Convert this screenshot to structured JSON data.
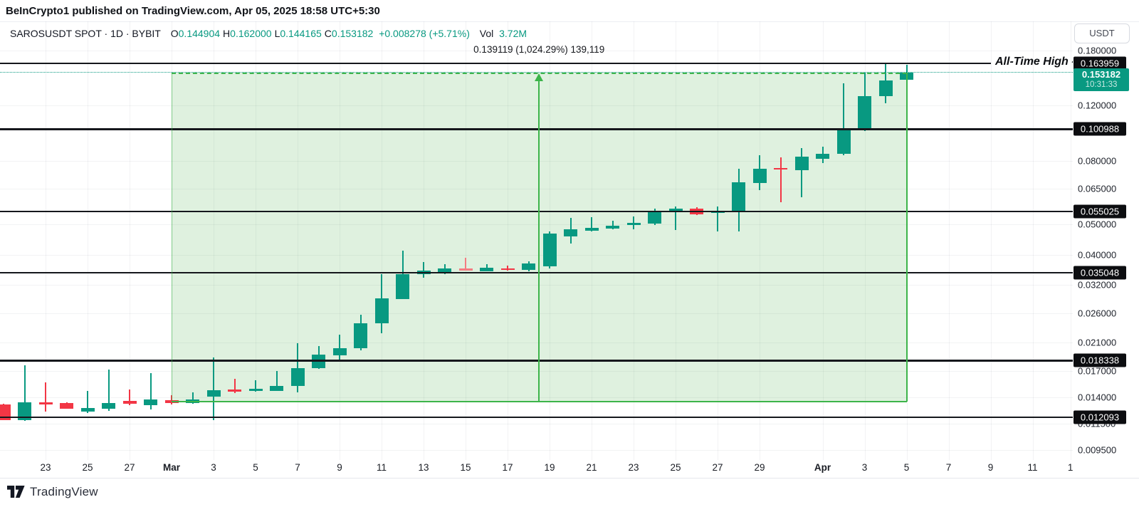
{
  "header": {
    "publish_info": "BeInCrypto1 published on TradingView.com, Apr 05, 2025 18:58 UTC+5:30"
  },
  "legend": {
    "title": "SAROSUSDT SPOT · 1D · BYBIT",
    "ohlc": [
      {
        "k": "O",
        "v": "0.144904"
      },
      {
        "k": "H",
        "v": "0.162000"
      },
      {
        "k": "L",
        "v": "0.144165"
      },
      {
        "k": "C",
        "v": "0.153182"
      }
    ],
    "change": "+0.008278 (+5.71%)",
    "volume_label": "Vol",
    "volume_value": "3.72M"
  },
  "toolbar": {
    "currency_button": "USDT"
  },
  "branding": {
    "logo_text": "TradingView"
  },
  "colors": {
    "up": "#089981",
    "down": "#F23645",
    "down_muted": "#F47C82",
    "measure_green": "#3cb44a",
    "ray_black": "#15171c",
    "badge_black": "#0c0d10"
  },
  "chart_data": {
    "type": "candlestick",
    "symbol": "SAROSUSDT",
    "market": "SPOT",
    "interval": "1D",
    "exchange": "BYBIT",
    "scale": "logarithmic",
    "title": "SAROSUSDT SPOT · 1D · BYBIT",
    "ylim": [
      0.0095,
      0.18
    ],
    "candles": [
      {
        "d": "Feb 21",
        "o": 0.0133,
        "h": 0.01332,
        "l": 0.01183,
        "c": 0.01185,
        "k": "r"
      },
      {
        "d": "Feb 22",
        "o": 0.01183,
        "h": 0.01772,
        "l": 0.0118,
        "c": 0.01348,
        "k": "g"
      },
      {
        "d": "Feb 23",
        "o": 0.01352,
        "h": 0.0156,
        "l": 0.01262,
        "c": 0.0133,
        "k": "r"
      },
      {
        "d": "Feb 24",
        "o": 0.0134,
        "h": 0.01348,
        "l": 0.01285,
        "c": 0.0129,
        "k": "r"
      },
      {
        "d": "Feb 25",
        "o": 0.01261,
        "h": 0.01467,
        "l": 0.01244,
        "c": 0.01296,
        "k": "g"
      },
      {
        "d": "Feb 26",
        "o": 0.01284,
        "h": 0.01716,
        "l": 0.01268,
        "c": 0.01341,
        "k": "g"
      },
      {
        "d": "Feb 27",
        "o": 0.01364,
        "h": 0.01482,
        "l": 0.01318,
        "c": 0.01333,
        "k": "r"
      },
      {
        "d": "Feb 28",
        "o": 0.01318,
        "h": 0.01672,
        "l": 0.0128,
        "c": 0.0138,
        "k": "g"
      },
      {
        "d": "Mar 1",
        "o": 0.01372,
        "h": 0.0142,
        "l": 0.01326,
        "c": 0.01341,
        "k": "r"
      },
      {
        "d": "Mar 2",
        "o": 0.01341,
        "h": 0.01453,
        "l": 0.01333,
        "c": 0.0138,
        "k": "g"
      },
      {
        "d": "Mar 3",
        "o": 0.01406,
        "h": 0.01873,
        "l": 0.01183,
        "c": 0.01475,
        "k": "g"
      },
      {
        "d": "Mar 4",
        "o": 0.01482,
        "h": 0.01601,
        "l": 0.01445,
        "c": 0.01467,
        "k": "r"
      },
      {
        "d": "Mar 5",
        "o": 0.01467,
        "h": 0.01584,
        "l": 0.0146,
        "c": 0.0149,
        "k": "g"
      },
      {
        "d": "Mar 6",
        "o": 0.01467,
        "h": 0.01698,
        "l": 0.01465,
        "c": 0.01521,
        "k": "g"
      },
      {
        "d": "Mar 7",
        "o": 0.01521,
        "h": 0.02089,
        "l": 0.01453,
        "c": 0.01734,
        "k": "g"
      },
      {
        "d": "Mar 8",
        "o": 0.01734,
        "h": 0.02038,
        "l": 0.0173,
        "c": 0.01916,
        "k": "g"
      },
      {
        "d": "Mar 9",
        "o": 0.01906,
        "h": 0.02222,
        "l": 0.01842,
        "c": 0.02007,
        "k": "g"
      },
      {
        "d": "Mar 10",
        "o": 0.02007,
        "h": 0.02573,
        "l": 0.01975,
        "c": 0.0241,
        "k": "g"
      },
      {
        "d": "Mar 11",
        "o": 0.0241,
        "h": 0.0347,
        "l": 0.02245,
        "c": 0.02903,
        "k": "g"
      },
      {
        "d": "Mar 12",
        "o": 0.02888,
        "h": 0.0413,
        "l": 0.0288,
        "c": 0.0347,
        "k": "g"
      },
      {
        "d": "Mar 13",
        "o": 0.0347,
        "h": 0.0379,
        "l": 0.03385,
        "c": 0.03562,
        "k": "g"
      },
      {
        "d": "Mar 14",
        "o": 0.03525,
        "h": 0.03733,
        "l": 0.0347,
        "c": 0.03618,
        "k": "g"
      },
      {
        "d": "Mar 15",
        "o": 0.0361,
        "h": 0.03906,
        "l": 0.03562,
        "c": 0.0359,
        "k": "s"
      },
      {
        "d": "Mar 16",
        "o": 0.03543,
        "h": 0.03733,
        "l": 0.0354,
        "c": 0.03637,
        "k": "g"
      },
      {
        "d": "Mar 17",
        "o": 0.03618,
        "h": 0.03695,
        "l": 0.03562,
        "c": 0.0358,
        "k": "r"
      },
      {
        "d": "Mar 18",
        "o": 0.0358,
        "h": 0.0381,
        "l": 0.03543,
        "c": 0.03752,
        "k": "g"
      },
      {
        "d": "Mar 19",
        "o": 0.03675,
        "h": 0.04745,
        "l": 0.03618,
        "c": 0.0467,
        "k": "g"
      },
      {
        "d": "Mar 20",
        "o": 0.04573,
        "h": 0.05238,
        "l": 0.04352,
        "c": 0.04817,
        "k": "g"
      },
      {
        "d": "Mar 21",
        "o": 0.04767,
        "h": 0.05265,
        "l": 0.04742,
        "c": 0.04868,
        "k": "g"
      },
      {
        "d": "Mar 22",
        "o": 0.04842,
        "h": 0.05128,
        "l": 0.04817,
        "c": 0.04944,
        "k": "g"
      },
      {
        "d": "Mar 23",
        "o": 0.0497,
        "h": 0.05293,
        "l": 0.04817,
        "c": 0.05048,
        "k": "g"
      },
      {
        "d": "Mar 24",
        "o": 0.05022,
        "h": 0.05628,
        "l": 0.0497,
        "c": 0.05512,
        "k": "g"
      },
      {
        "d": "Mar 25",
        "o": 0.05483,
        "h": 0.05717,
        "l": 0.04791,
        "c": 0.05628,
        "k": "g"
      },
      {
        "d": "Mar 26",
        "o": 0.05628,
        "h": 0.05687,
        "l": 0.05368,
        "c": 0.05396,
        "k": "r"
      },
      {
        "d": "Mar 27",
        "o": 0.05455,
        "h": 0.05717,
        "l": 0.04742,
        "c": 0.05541,
        "k": "g"
      },
      {
        "d": "Mar 28",
        "o": 0.05512,
        "h": 0.07545,
        "l": 0.04742,
        "c": 0.06834,
        "k": "g"
      },
      {
        "d": "Mar 29",
        "o": 0.06798,
        "h": 0.08344,
        "l": 0.06451,
        "c": 0.07545,
        "k": "g"
      },
      {
        "d": "Mar 30",
        "o": 0.07585,
        "h": 0.08214,
        "l": 0.05899,
        "c": 0.07506,
        "k": "r"
      },
      {
        "d": "Mar 31",
        "o": 0.07467,
        "h": 0.08796,
        "l": 0.06119,
        "c": 0.08258,
        "k": "g"
      },
      {
        "d": "Apr 1",
        "o": 0.08129,
        "h": 0.08889,
        "l": 0.07872,
        "c": 0.08434,
        "k": "g"
      },
      {
        "d": "Apr 2",
        "o": 0.08434,
        "h": 0.14164,
        "l": 0.08344,
        "c": 0.09994,
        "k": "g"
      },
      {
        "d": "Apr 3",
        "o": 0.09994,
        "h": 0.15279,
        "l": 0.09942,
        "c": 0.12846,
        "k": "g"
      },
      {
        "d": "Apr 4",
        "o": 0.12846,
        "h": 0.16396,
        "l": 0.12217,
        "c": 0.14467,
        "k": "g"
      },
      {
        "d": "Apr 5",
        "o": 0.144904,
        "h": 0.162,
        "l": 0.144165,
        "c": 0.153182,
        "k": "g"
      }
    ],
    "y_axis_labels": [
      {
        "text": "0.180000",
        "p": 0.18
      },
      {
        "text": "0.120000",
        "p": 0.12
      },
      {
        "text": "0.080000",
        "p": 0.08
      },
      {
        "text": "0.065000",
        "p": 0.065
      },
      {
        "text": "0.050000",
        "p": 0.05
      },
      {
        "text": "0.040000",
        "p": 0.04
      },
      {
        "text": "0.032000",
        "p": 0.032
      },
      {
        "text": "0.026000",
        "p": 0.026
      },
      {
        "text": "0.021000",
        "p": 0.021
      },
      {
        "text": "0.017000",
        "p": 0.017
      },
      {
        "text": "0.014000",
        "p": 0.014
      },
      {
        "text": "0.011500",
        "p": 0.0115
      },
      {
        "text": "0.009500",
        "p": 0.0095
      }
    ],
    "x_ticks": [
      {
        "t": "23",
        "day": 2
      },
      {
        "t": "25",
        "day": 4
      },
      {
        "t": "27",
        "day": 6
      },
      {
        "t": "Mar",
        "day": 8,
        "bold": true
      },
      {
        "t": "3",
        "day": 10
      },
      {
        "t": "5",
        "day": 12
      },
      {
        "t": "7",
        "day": 14
      },
      {
        "t": "9",
        "day": 16
      },
      {
        "t": "11",
        "day": 18
      },
      {
        "t": "13",
        "day": 20
      },
      {
        "t": "15",
        "day": 22
      },
      {
        "t": "17",
        "day": 24
      },
      {
        "t": "19",
        "day": 26
      },
      {
        "t": "21",
        "day": 28
      },
      {
        "t": "23",
        "day": 30
      },
      {
        "t": "25",
        "day": 32
      },
      {
        "t": "27",
        "day": 34
      },
      {
        "t": "29",
        "day": 36
      },
      {
        "t": "Apr",
        "day": 39,
        "bold": true
      },
      {
        "t": "3",
        "day": 41
      },
      {
        "t": "5",
        "day": 43
      },
      {
        "t": "7",
        "day": 45
      },
      {
        "t": "9",
        "day": 47
      },
      {
        "t": "11",
        "day": 49
      },
      {
        "t": "1",
        "day": 50.8
      }
    ],
    "horizontal_rays": [
      {
        "price": 0.100988,
        "badge": "0.100988"
      },
      {
        "price": 0.055025,
        "badge": "0.055025"
      },
      {
        "price": 0.035048,
        "badge": "0.035048"
      },
      {
        "price": 0.018338,
        "badge": "0.018338"
      },
      {
        "price": 0.012093,
        "badge": "0.012093"
      }
    ],
    "ath": {
      "price": 0.163959,
      "badge": "0.163959",
      "label": "All-Time High -"
    },
    "price_line": {
      "price": 0.153182,
      "badge": "0.153182",
      "timer": "10:31:33"
    },
    "measure": {
      "label": "0.139119 (1,024.29%) 139,119",
      "start_day": 8,
      "end_day": 43,
      "price_start": 0.013582,
      "price_end": 0.152701
    }
  }
}
